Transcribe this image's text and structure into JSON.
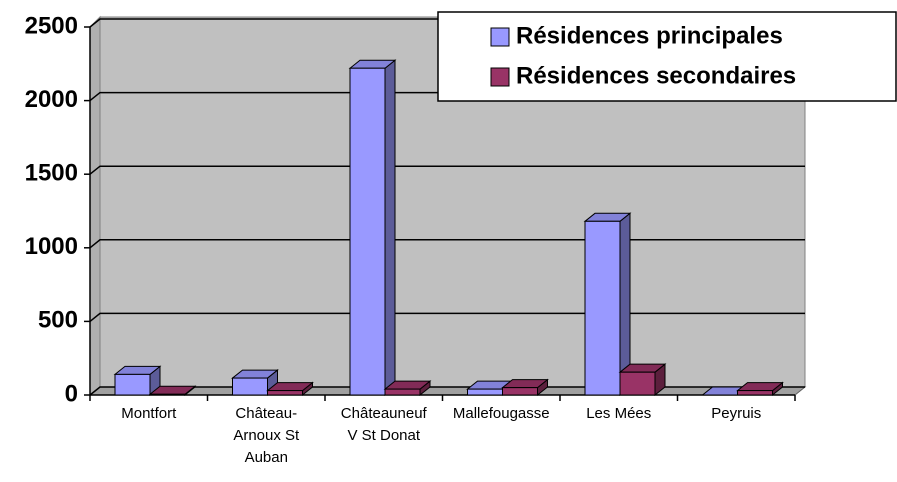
{
  "chart_data": {
    "type": "bar3d",
    "categories": [
      "Montfort",
      "Château-Arnoux St Auban",
      "Châteauneuf V St Donat",
      "Mallefougasse",
      "Les Mées",
      "Peyruis"
    ],
    "series": [
      {
        "name": "Résidences principales",
        "color": "#9999ff",
        "values": [
          140,
          115,
          2220,
          40,
          1180,
          0
        ]
      },
      {
        "name": "Résidences secondaires",
        "color": "#993366",
        "values": [
          5,
          30,
          40,
          50,
          155,
          30
        ]
      }
    ],
    "ylim": [
      0,
      2500
    ],
    "yticks": [
      0,
      500,
      1000,
      1500,
      2000,
      2500
    ],
    "grid": true,
    "legend": "top-right"
  }
}
